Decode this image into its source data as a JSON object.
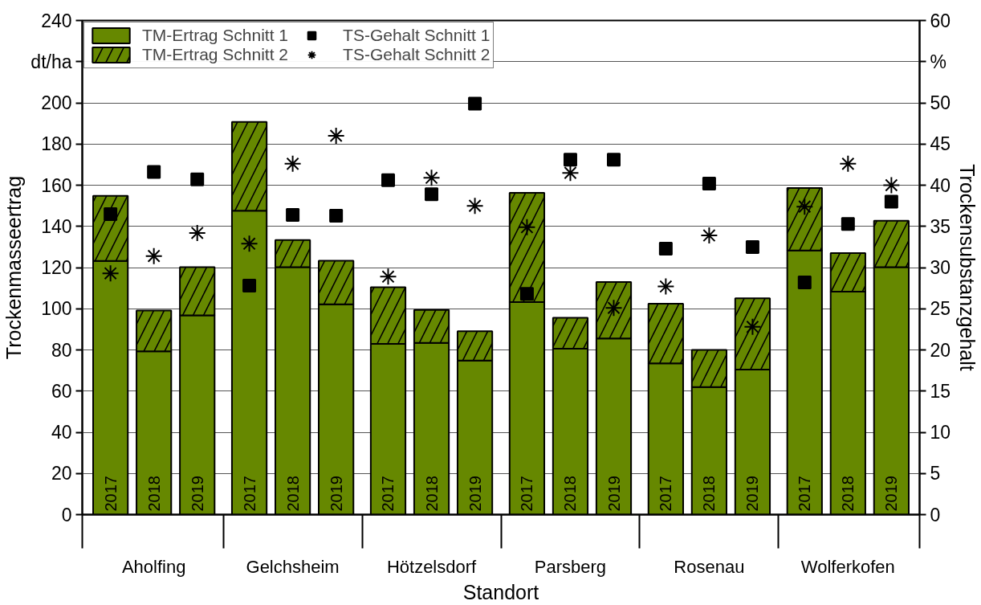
{
  "chart_data": {
    "type": "bar",
    "stacked": true,
    "categories": [
      "2017",
      "2018",
      "2019",
      "2017",
      "2018",
      "2019",
      "2017",
      "2018",
      "2019",
      "2017",
      "2018",
      "2019",
      "2017",
      "2018",
      "2019",
      "2017",
      "2018",
      "2019"
    ],
    "annotations": [
      "Aholfing",
      "Gelchsheim",
      "Hötzelsdorf",
      "Parsberg",
      "Rosenau",
      "Wolferkofen"
    ],
    "xlabel": "Standort",
    "ylabel": "Trockenmasseertrag",
    "y2label": "Trockensubstanzgehalt",
    "ylim": [
      0,
      240
    ],
    "yticks": [
      0,
      20,
      40,
      60,
      80,
      100,
      120,
      140,
      160,
      180,
      200,
      {
        "value": 220,
        "label": "dt/ha"
      },
      240
    ],
    "y2lim": [
      0,
      60
    ],
    "y2ticks": [
      0,
      5,
      10,
      15,
      20,
      25,
      30,
      35,
      40,
      45,
      50,
      {
        "value": 55,
        "label": "%"
      },
      60
    ],
    "grid": "y",
    "legend": "top left",
    "series": [
      {
        "name": "TM-Ertrag Schnitt 1",
        "color": "#668800",
        "values": [
          123.2,
          79.3,
          96.8,
          147.6,
          120.2,
          102.1,
          82.9,
          83.4,
          74.8,
          103.2,
          80.6,
          85.6,
          73.5,
          62.0,
          70.4,
          128.3,
          108.3,
          120.2
        ]
      },
      {
        "name": "TM-Ertrag Schnitt 2",
        "color": "#668800",
        "values": [
          31.6,
          19.8,
          23.4,
          43.1,
          13.2,
          21.2,
          27.5,
          16.0,
          14.3,
          53.1,
          15.0,
          27.4,
          28.9,
          18.0,
          34.7,
          30.3,
          18.7,
          22.5
        ]
      },
      {
        "name": "TS-Gehalt Schnitt 1",
        "type": "scatter",
        "axis": "y2",
        "marker": "square",
        "color": "#000000",
        "values": [
          36.5,
          41.6,
          40.7,
          27.8,
          36.4,
          36.3,
          40.6,
          38.9,
          49.9,
          26.8,
          43.1,
          43.1,
          32.3,
          40.2,
          32.5,
          28.2,
          35.3,
          38.0
        ]
      },
      {
        "name": "TS-Gehalt Schnitt 2",
        "type": "scatter",
        "axis": "y2",
        "marker": "cross",
        "color": "#000000",
        "values": [
          29.3,
          31.4,
          34.2,
          32.9,
          42.6,
          46.0,
          28.9,
          40.9,
          37.5,
          34.9,
          41.5,
          25.1,
          27.7,
          33.9,
          22.8,
          37.4,
          42.6,
          40.0
        ]
      }
    ]
  }
}
